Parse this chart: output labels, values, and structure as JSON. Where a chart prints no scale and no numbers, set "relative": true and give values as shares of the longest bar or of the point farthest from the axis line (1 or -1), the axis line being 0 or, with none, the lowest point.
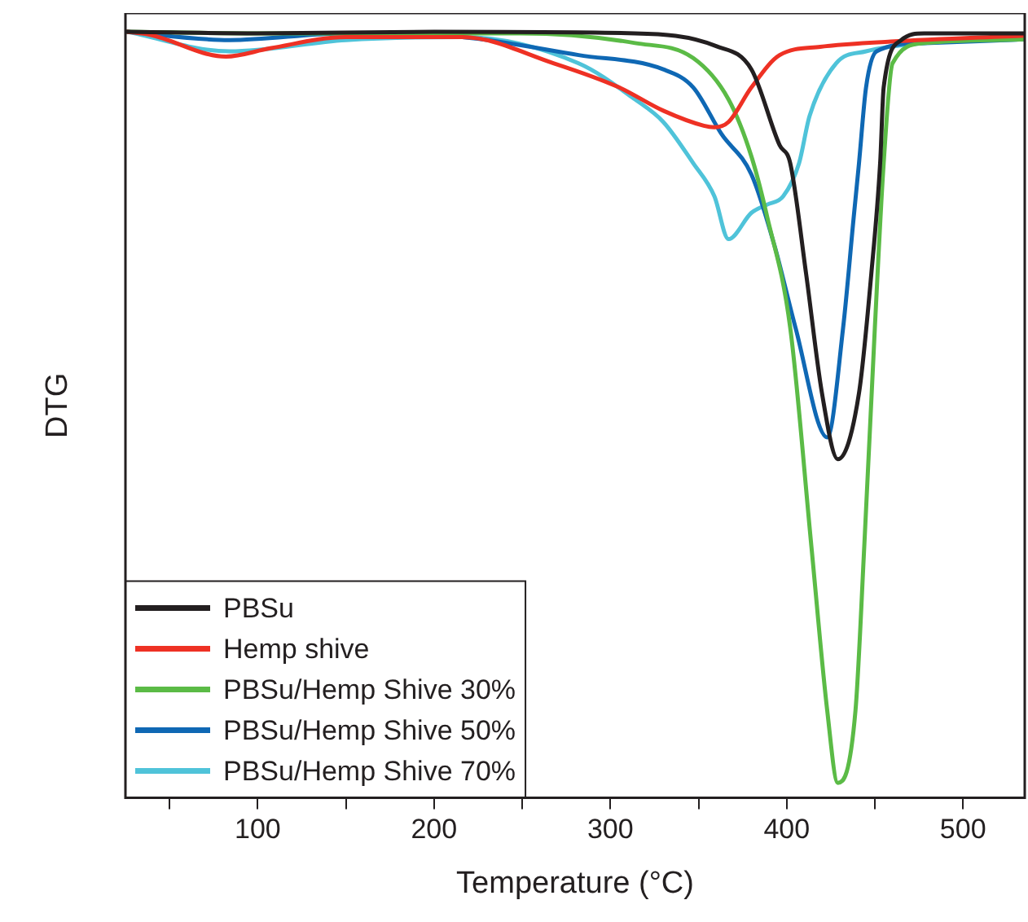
{
  "chart_data": {
    "type": "line",
    "xlabel": "Temperature (°C)",
    "ylabel": "DTG",
    "relative": true,
    "xlim": [
      25,
      535
    ],
    "xticks": [
      {
        "value": 50,
        "label": null
      },
      100,
      {
        "value": 150,
        "label": null
      },
      200,
      {
        "value": 250,
        "label": null
      },
      300,
      {
        "value": 350,
        "label": null
      },
      400,
      {
        "value": 450,
        "label": null
      },
      500
    ],
    "legend": "bottom left",
    "grid": false,
    "marker": "none",
    "line_style": "solid",
    "series": [
      {
        "name": "PBSu",
        "color": "#231f20",
        "x": [
          26,
          100,
          200,
          314,
          360,
          380,
          396,
          402,
          411,
          420,
          429,
          441,
          448,
          453,
          455,
          465,
          478,
          535
        ],
        "values": [
          1.0,
          0.998,
          1.0,
          0.998,
          0.981,
          0.95,
          0.849,
          0.825,
          0.678,
          0.519,
          0.431,
          0.519,
          0.678,
          0.825,
          0.926,
          0.989,
          0.998,
          0.998
        ]
      },
      {
        "name": "Hemp shive",
        "color": "#ee3124",
        "x": [
          26,
          39,
          82,
          107,
          150,
          216,
          268,
          305,
          330,
          353,
          359,
          367,
          380,
          396,
          419,
          459,
          535
        ],
        "values": [
          1.0,
          0.996,
          0.967,
          0.978,
          0.993,
          0.993,
          0.958,
          0.926,
          0.895,
          0.875,
          0.873,
          0.88,
          0.926,
          0.969,
          0.98,
          0.987,
          0.995
        ]
      },
      {
        "name": "PBSu/Hemp Shive 30%",
        "color": "#5bbb46",
        "x": [
          26,
          100,
          249,
          314,
          347,
          367,
          380,
          389,
          402,
          414,
          423,
          429,
          439,
          444,
          450,
          455,
          460,
          478,
          535
        ],
        "values": [
          1.0,
          0.998,
          0.998,
          0.985,
          0.965,
          0.91,
          0.834,
          0.753,
          0.606,
          0.315,
          0.096,
          0,
          0.096,
          0.315,
          0.606,
          0.825,
          0.958,
          0.985,
          0.99
        ]
      },
      {
        "name": "PBSu/Hemp Shive 50%",
        "color": "#0f68b4",
        "x": [
          26,
          84,
          150,
          216,
          282,
          330,
          347,
          363,
          380,
          393,
          405,
          423,
          432,
          438,
          441,
          445,
          451,
          478,
          535
        ],
        "values": [
          1.0,
          0.989,
          0.998,
          0.993,
          0.969,
          0.95,
          0.926,
          0.864,
          0.81,
          0.716,
          0.606,
          0.46,
          0.606,
          0.753,
          0.825,
          0.926,
          0.974,
          0.985,
          0.99
        ]
      },
      {
        "name": "PBSu/Hemp Shive 70%",
        "color": "#4fc3d9",
        "x": [
          26,
          84,
          150,
          216,
          282,
          314,
          330,
          347,
          359,
          367,
          380,
          389,
          398,
          407,
          413,
          428,
          445,
          478,
          535
        ],
        "values": [
          1.0,
          0.974,
          0.989,
          0.993,
          0.958,
          0.91,
          0.88,
          0.825,
          0.781,
          0.724,
          0.759,
          0.77,
          0.781,
          0.825,
          0.888,
          0.958,
          0.974,
          0.985,
          0.99
        ]
      }
    ]
  }
}
